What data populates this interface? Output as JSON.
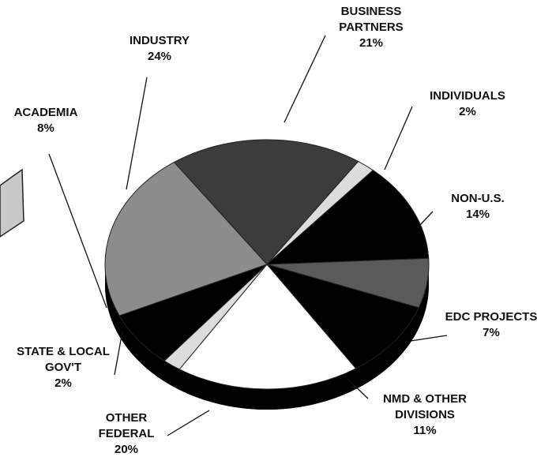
{
  "chart_data": {
    "type": "pie",
    "categories": [
      "BUSINESS PARTNERS",
      "INDIVIDUALS",
      "NON-U.S.",
      "EDC PROJECTS",
      "NMD & OTHER DIVISIONS",
      "OTHER FEDERAL",
      "STATE & LOCAL GOV'T",
      "ACADEMIA",
      "INDUSTRY"
    ],
    "values": [
      21,
      2,
      14,
      7,
      11,
      20,
      2,
      8,
      24
    ],
    "value_labels": [
      "21%",
      "2%",
      "14%",
      "7%",
      "11%",
      "20%",
      "2%",
      "8%",
      "24%"
    ],
    "colors": [
      "#3c3c3c",
      "#dcdcdc",
      "#000000",
      "#5a5a5a",
      "#000000",
      "#ffffff",
      "#dcdcdc",
      "#000000",
      "#8c8c8c"
    ]
  }
}
